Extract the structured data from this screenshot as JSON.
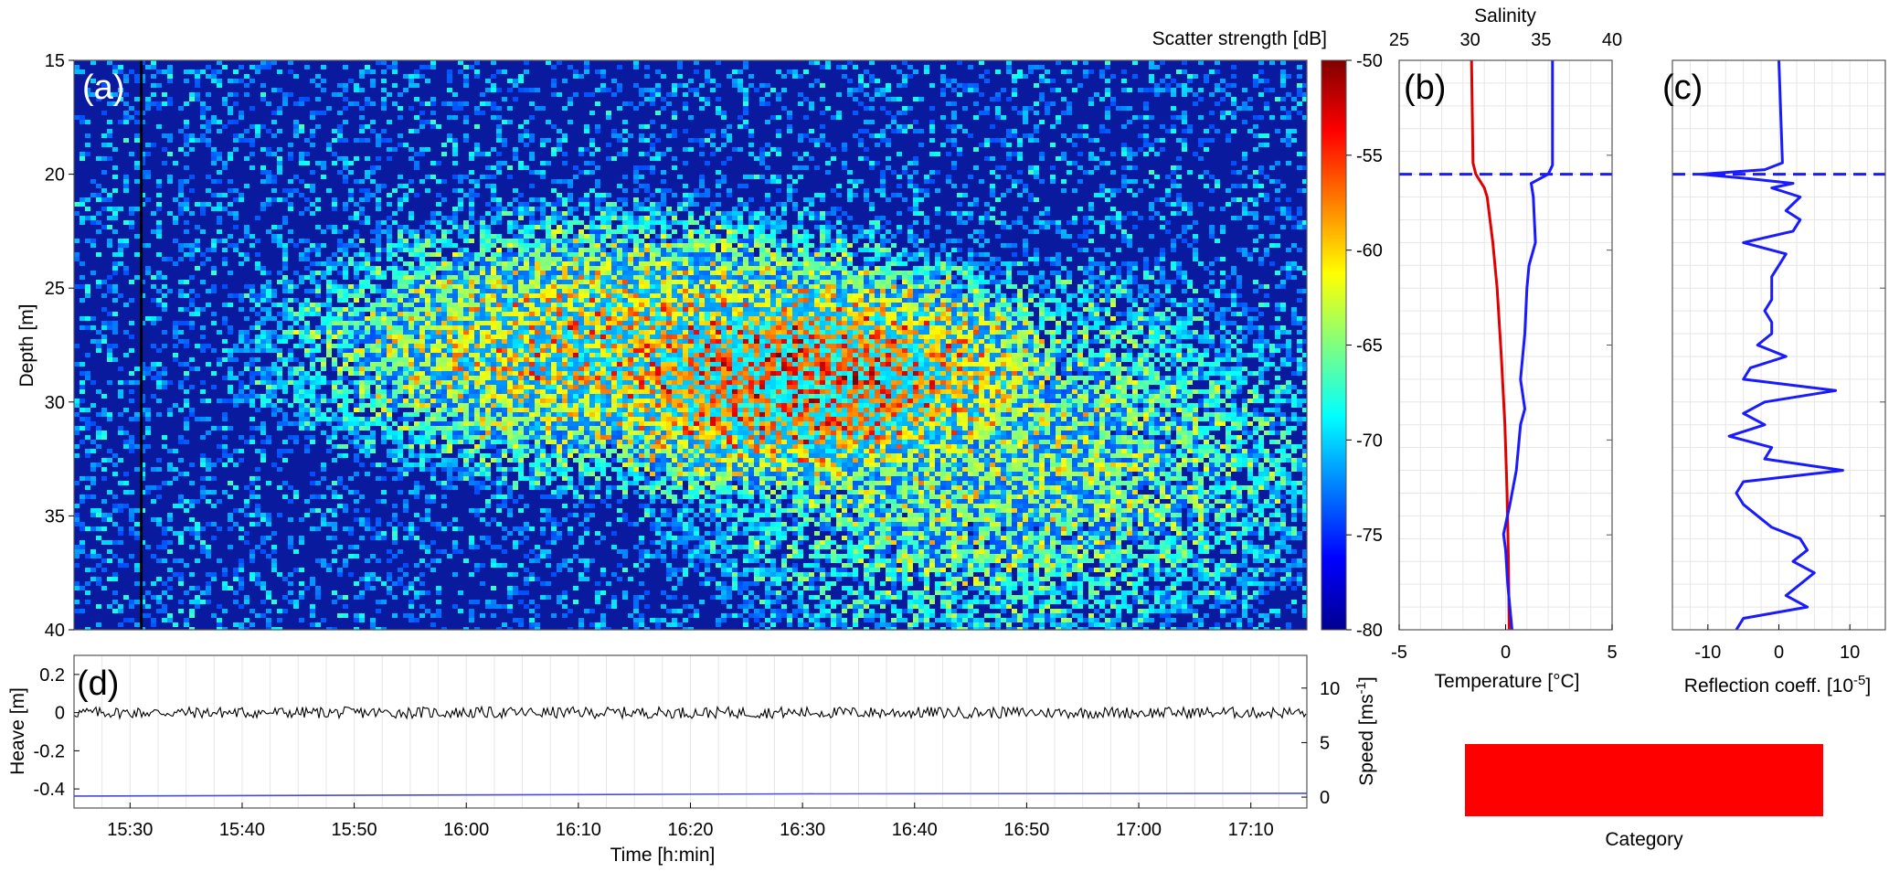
{
  "chart_data": [
    {
      "panel": "(a)",
      "type": "heatmap",
      "ylabel": "Depth [m]",
      "ylim": [
        15,
        40
      ],
      "yticks": [
        "15",
        "20",
        "25",
        "30",
        "35",
        "40"
      ],
      "colorbar": {
        "title": "Scatter strength [dB]",
        "range": [
          -80,
          -50
        ],
        "ticks": [
          "-50",
          "-55",
          "-60",
          "-65",
          "-70",
          "-75",
          "-80"
        ],
        "colormap": "jet"
      },
      "x_range_time": [
        "15:25",
        "17:15"
      ],
      "vertical_marker_time": "15:31",
      "features": [
        {
          "description": "high-scatter layer",
          "time_range": [
            "15:45",
            "16:45"
          ],
          "depth_range": [
            22,
            33
          ]
        },
        {
          "description": "moderate scatter field",
          "time_range": [
            "16:20",
            "17:15"
          ],
          "depth_range": [
            25,
            40
          ]
        }
      ]
    },
    {
      "panel": "(b)",
      "type": "line",
      "xlabel": "Temperature [°C]",
      "xlim": [
        -5,
        5
      ],
      "xticks": [
        "-5",
        "0",
        "5"
      ],
      "top_axis_label": "Salinity",
      "top_axis_lim": [
        25,
        40
      ],
      "top_axis_ticks": [
        "25",
        "30",
        "35",
        "40"
      ],
      "ylim": [
        15,
        40
      ],
      "right_axis_ticks": [
        "-50",
        "-55",
        "-60",
        "-65",
        "-70",
        "-75",
        "-80"
      ],
      "hline_depth": 20,
      "series": [
        {
          "color": "#e00000",
          "axis": "top",
          "depth": [
            15,
            19.5,
            20,
            20.6,
            21,
            22,
            23,
            25,
            28,
            31,
            34,
            37,
            40
          ],
          "values": [
            30.1,
            30.2,
            30.4,
            31.0,
            31.2,
            31.4,
            31.6,
            31.9,
            32.2,
            32.45,
            32.6,
            32.7,
            32.75
          ]
        },
        {
          "color": "#1a1aff",
          "axis": "bottom",
          "depth": [
            15,
            19.6,
            20.0,
            20.4,
            21,
            23,
            24,
            25,
            27,
            29,
            30.3,
            31,
            33,
            34.5,
            35.8,
            36.5,
            38,
            40
          ],
          "values": [
            2.2,
            2.2,
            2.0,
            1.2,
            1.3,
            1.4,
            1.1,
            1.0,
            0.9,
            0.7,
            0.9,
            0.7,
            0.5,
            0.2,
            -0.1,
            0.0,
            0.1,
            0.3
          ]
        }
      ]
    },
    {
      "panel": "(c)",
      "type": "line",
      "xlabel": "Reflection coeff. [10",
      "xlabel_sup": "-5",
      "xlabel_end": "]",
      "xlim": [
        -15,
        15
      ],
      "xticks": [
        "-10",
        "0",
        "10"
      ],
      "ylim": [
        15,
        40
      ],
      "hline_depth": 20,
      "series": [
        {
          "color": "#1a1aff",
          "depth": [
            15,
            19.5,
            19.8,
            20.0,
            20.2,
            20.4,
            20.6,
            20.8,
            21.0,
            21.3,
            21.6,
            22.0,
            22.5,
            23.0,
            23.5,
            24.0,
            24.5,
            25.0,
            25.5,
            26.0,
            26.5,
            27.0,
            27.5,
            28.0,
            28.5,
            29.0,
            29.5,
            30.0,
            30.5,
            31.0,
            31.5,
            32.0,
            32.5,
            33.0,
            33.5,
            34.0,
            34.5,
            35.0,
            35.5,
            36.0,
            36.5,
            37.0,
            37.5,
            38.0,
            38.5,
            39.0,
            39.5,
            40.0
          ],
          "values": [
            0.0,
            0.5,
            -2,
            -11,
            -4,
            2,
            -1,
            1,
            3,
            2,
            1,
            3,
            2,
            -5,
            1,
            0,
            -1,
            -1,
            -1,
            -2,
            -1,
            -1,
            -3,
            1,
            -4,
            -5,
            8,
            -2,
            -5,
            -2,
            -7,
            -1,
            -2,
            9,
            -5,
            -6,
            -5,
            -3,
            -1,
            3,
            4,
            2,
            5,
            3,
            1,
            4,
            -5,
            -6
          ]
        }
      ]
    },
    {
      "panel": "(d)",
      "type": "line",
      "xlabel": "Time [h:min]",
      "xticks": [
        "15:30",
        "15:40",
        "15:50",
        "16:00",
        "16:10",
        "16:20",
        "16:30",
        "16:40",
        "16:50",
        "17:00",
        "17:10"
      ],
      "xlim_time": [
        "15:25",
        "17:15"
      ],
      "ylabel_left": "Heave [m]",
      "ylim_left": [
        -0.5,
        0.3
      ],
      "yticks_left": [
        "0.2",
        "0",
        "-0.2",
        "-0.4"
      ],
      "ylabel_right": "Speed [ms",
      "ylabel_right_sup": "-1",
      "ylabel_right_end": "]",
      "ylim_right": [
        -1,
        13
      ],
      "yticks_right": [
        "10",
        "5",
        "0"
      ],
      "series": [
        {
          "name": "heave",
          "color": "#000000",
          "axis": "left",
          "mean": 0.0,
          "amplitude": 0.03
        },
        {
          "name": "speed",
          "color": "#4a4adf",
          "axis": "right",
          "time": [
            "15:25",
            "16:00",
            "16:30",
            "17:15"
          ],
          "values": [
            0.1,
            0.2,
            0.3,
            0.35
          ]
        }
      ]
    },
    {
      "panel": "legend",
      "type": "bar",
      "label": "Category",
      "color": "#ff0000"
    }
  ]
}
